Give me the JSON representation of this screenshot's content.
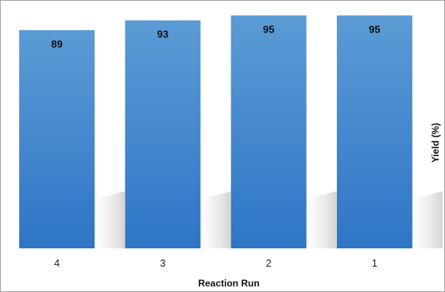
{
  "chart_data": {
    "type": "bar",
    "categories": [
      "4",
      "3",
      "2",
      "1"
    ],
    "values": [
      89,
      93,
      95,
      95
    ],
    "xlabel": "Reaction Run",
    "ylabel": "Yield (%)",
    "ylim": [
      0,
      100
    ],
    "grid": false,
    "legend": "none",
    "bar_color_top": "#5b9bd5",
    "bar_color_bottom": "#2e75c6",
    "shadow_color": "#d9d9d9"
  }
}
